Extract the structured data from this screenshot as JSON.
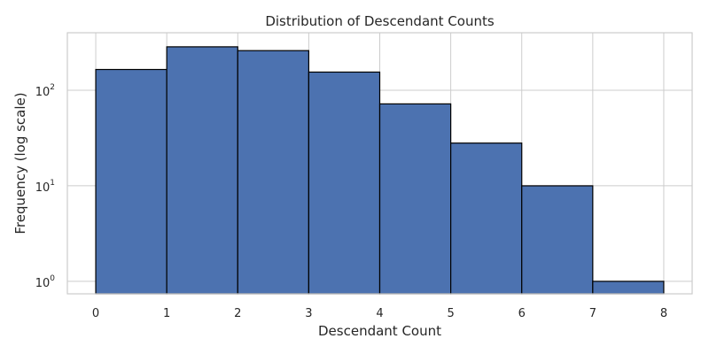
{
  "chart_data": {
    "type": "bar",
    "title": "Distribution of Descendant Counts",
    "xlabel": "Descendant Count",
    "ylabel": "Frequency (log scale)",
    "y_scale": "log",
    "bin_edges": [
      0,
      1,
      2,
      3,
      4,
      5,
      6,
      7,
      8
    ],
    "values": [
      165,
      285,
      260,
      155,
      72,
      28,
      10,
      1
    ],
    "x_ticks": [
      0,
      1,
      2,
      3,
      4,
      5,
      6,
      7,
      8
    ],
    "y_ticks": [
      1,
      10,
      100
    ],
    "y_tick_labels": [
      {
        "base": "10",
        "exp": "0"
      },
      {
        "base": "10",
        "exp": "1"
      },
      {
        "base": "10",
        "exp": "2"
      }
    ],
    "xlim": [
      -0.4,
      8.4
    ],
    "ylim": [
      0.74,
      400
    ],
    "grid": true,
    "bar_color": "#4c72b0",
    "edge_color": "#000000"
  }
}
